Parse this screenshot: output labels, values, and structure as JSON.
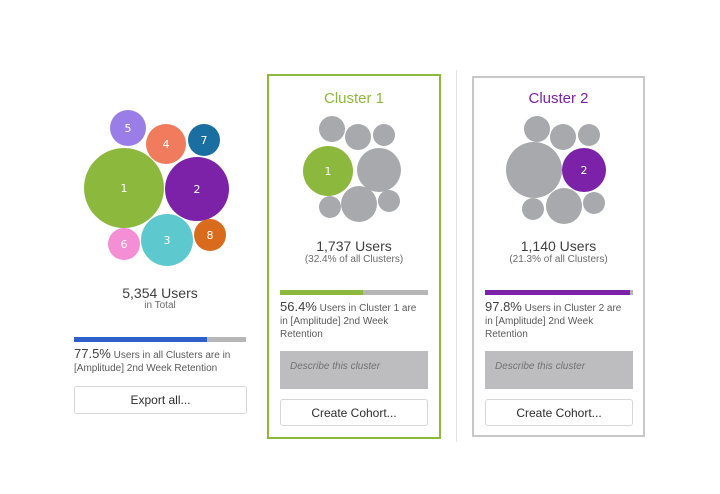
{
  "overview": {
    "bubbles": [
      {
        "label": "1",
        "color": "#8db83e"
      },
      {
        "label": "2",
        "color": "#7b22a8"
      },
      {
        "label": "3",
        "color": "#5ec8cf"
      },
      {
        "label": "4",
        "color": "#f07b5d"
      },
      {
        "label": "5",
        "color": "#9a7de6"
      },
      {
        "label": "6",
        "color": "#f48fd5"
      },
      {
        "label": "7",
        "color": "#1a6fa0"
      },
      {
        "label": "8",
        "color": "#d86c1c"
      }
    ],
    "total_users": "5,354 Users",
    "total_caption": "in Total",
    "retention_fraction": 0.775,
    "retention_color": "#2f5fc9",
    "retention_pct": "77.5%",
    "retention_text_a": "Users in all Clusters are in",
    "retention_text_b": "[Amplitude] 2nd Week Retention",
    "export_label": "Export all..."
  },
  "clusters": [
    {
      "title": "Cluster 1",
      "accent": "#8db83e",
      "highlight_label": "1",
      "users": "1,737 Users",
      "share": "(32.4% of all Clusters)",
      "retention_fraction": 0.564,
      "retention_pct": "56.4%",
      "retention_text_a": "Users in Cluster 1 are",
      "retention_text_b": "in [Amplitude] 2nd Week",
      "retention_text_c": "Retention",
      "describe_placeholder": "Describe this cluster",
      "cohort_label": "Create Cohort..."
    },
    {
      "title": "Cluster 2",
      "accent": "#7b22a8",
      "highlight_label": "2",
      "users": "1,140 Users",
      "share": "(21.3% of all Clusters)",
      "retention_fraction": 0.978,
      "retention_pct": "97.8%",
      "retention_text_a": "Users in Cluster 2 are",
      "retention_text_b": "in [Amplitude] 2nd Week",
      "retention_text_c": "Retention",
      "describe_placeholder": "Describe this cluster",
      "cohort_label": "Create Cohort..."
    }
  ]
}
